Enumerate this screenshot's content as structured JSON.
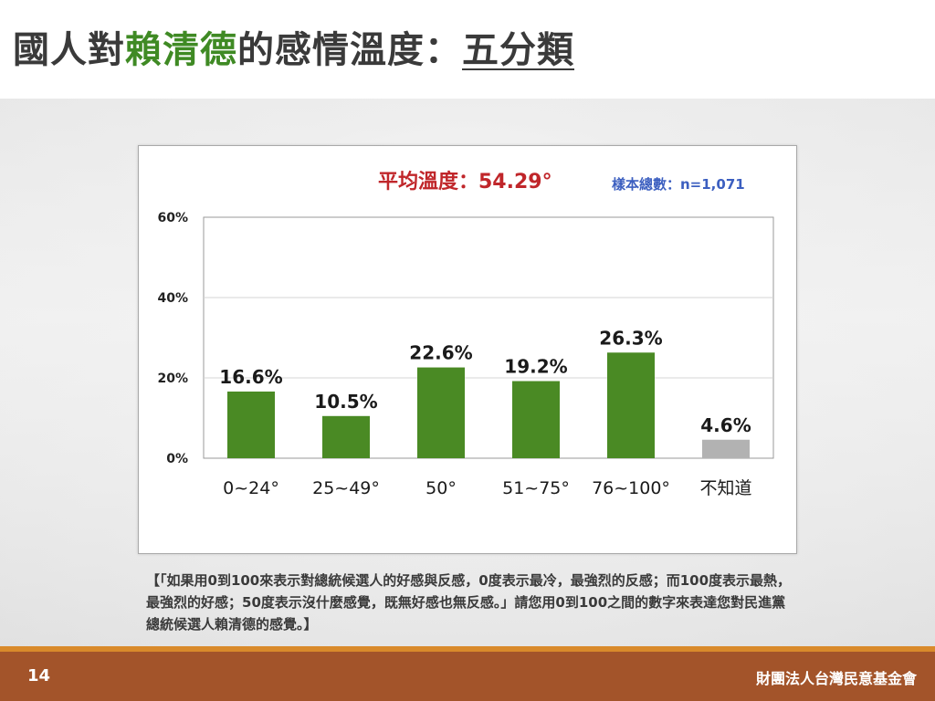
{
  "title": {
    "part1": "國人對",
    "highlight": "賴清德",
    "part2": "的感情溫度：",
    "underlined": "五分類"
  },
  "chart_header": {
    "average": "平均溫度：54.29°",
    "sample": "樣本總數：n=1,071"
  },
  "chart_data": {
    "type": "bar",
    "categories": [
      "0~24°",
      "25~49°",
      "50°",
      "51~75°",
      "76~100°",
      "不知道"
    ],
    "values": [
      16.6,
      10.5,
      22.6,
      19.2,
      26.3,
      4.6
    ],
    "value_labels": [
      "16.6%",
      "10.5%",
      "22.6%",
      "19.2%",
      "26.3%",
      "4.6%"
    ],
    "ylim": [
      0,
      60
    ],
    "yticks": [
      0,
      20,
      40,
      60
    ],
    "ytick_labels": [
      "0%",
      "20%",
      "40%",
      "60%"
    ],
    "grid": true,
    "bar_colors": [
      "#4a8a24",
      "#4a8a24",
      "#4a8a24",
      "#4a8a24",
      "#4a8a24",
      "#b2b2b2"
    ],
    "title": "",
    "xlabel": "",
    "ylabel": ""
  },
  "caption": "【「如果用0到100來表示對總統候選人的好感與反感，0度表示最冷，最強烈的反感；而100度表示最熱，最強烈的好感；50度表示沒什麼感覺，既無好感也無反感。」請您用0到100之間的數字來表達您對民進黨總統候選人賴清德的感覺。】",
  "footer": {
    "page_number": "14",
    "organization": "財團法人台灣民意基金會"
  },
  "colors": {
    "title_highlight": "#3f8a24",
    "average_text": "#c0262a",
    "sample_text": "#3c5fc0",
    "footer_bg": "#a3542a",
    "footer_stripe": "#d98a2b"
  }
}
